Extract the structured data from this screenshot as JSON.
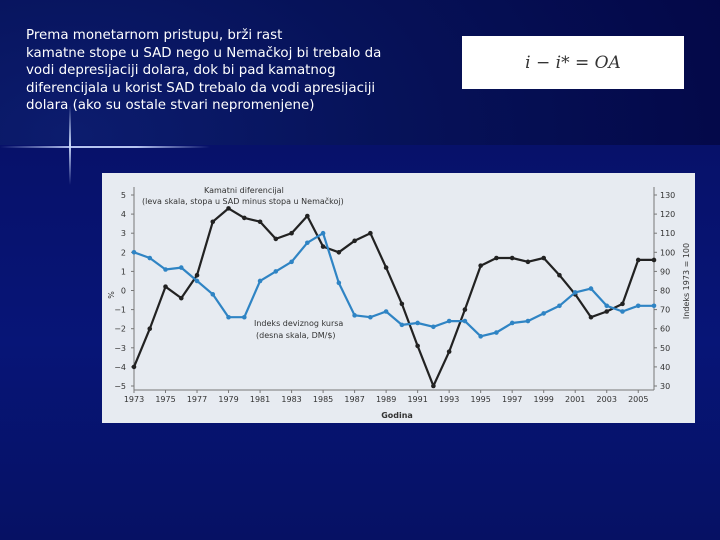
{
  "intro_text": "Prema monetarnom pristupu, brži rast\nkamatne stope u SAD nego u Nemačkoj bi trebalo da\nvodi depresijaciji dolara, dok bi pad kamatnog\ndiferencijala u korist SAD trebalo da vodi apresijaciji\ndolara (ako su ostale stvari nepromenjene)",
  "formula": "i − i* = OA",
  "colors": {
    "interest_line": "#222222",
    "index_line": "#2f84c4"
  },
  "chart_data": {
    "type": "line",
    "xlabel": "Godina",
    "ylabel_left": "%",
    "ylabel_right": "Indeks 1973 = 100",
    "xlim": [
      1973,
      2006
    ],
    "x_ticks": [
      "1973",
      "1975",
      "1977",
      "1979",
      "1981",
      "1983",
      "1985",
      "1987",
      "1989",
      "1991",
      "1993",
      "1995",
      "1997",
      "1999",
      "2001",
      "2003",
      "2005"
    ],
    "ylim_left": [
      -5,
      5
    ],
    "y_ticks_left": [
      "5",
      "4",
      "3",
      "2",
      "1",
      "0",
      "−1",
      "−2",
      "−3",
      "−4",
      "−5"
    ],
    "ylim_right": [
      30,
      130
    ],
    "y_ticks_right": [
      "130",
      "120",
      "110",
      "100",
      "90",
      "80",
      "70",
      "60",
      "50",
      "40",
      "30"
    ],
    "series": [
      {
        "name": "Kamatni diferencijal (leva skala, stopa u SAD minus stopa u Nemačkoj)",
        "label_lines": [
          "Kamatni diferencijal",
          "(leva skala, stopa u SAD minus stopa u Nemačkoj)"
        ],
        "axis": "left",
        "x": [
          1973,
          1974,
          1975,
          1976,
          1977,
          1978,
          1979,
          1980,
          1981,
          1982,
          1983,
          1984,
          1985,
          1986,
          1987,
          1988,
          1989,
          1990,
          1991,
          1992,
          1993,
          1994,
          1995,
          1996,
          1997,
          1998,
          1999,
          2000,
          2001,
          2002,
          2003,
          2004,
          2005,
          2006
        ],
        "values": [
          -4.0,
          -2.0,
          0.2,
          -0.4,
          0.8,
          3.6,
          4.3,
          3.8,
          3.6,
          2.7,
          3.0,
          3.9,
          2.3,
          2.0,
          2.6,
          3.0,
          1.2,
          -0.7,
          -2.9,
          -5.0,
          -3.2,
          -1.0,
          1.3,
          1.7,
          1.7,
          1.5,
          1.7,
          0.8,
          -0.2,
          -1.4,
          -1.1,
          -0.7,
          1.6,
          1.6
        ]
      },
      {
        "name": "Indeks deviznog kursa (desna skala, DM/$)",
        "label_lines": [
          "Indeks deviznog kursa",
          "(desna skala, DM/$)"
        ],
        "axis": "right",
        "x": [
          1973,
          1974,
          1975,
          1976,
          1977,
          1978,
          1979,
          1980,
          1981,
          1982,
          1983,
          1984,
          1985,
          1986,
          1987,
          1988,
          1989,
          1990,
          1991,
          1992,
          1993,
          1994,
          1995,
          1996,
          1997,
          1998,
          1999,
          2000,
          2001,
          2002,
          2003,
          2004,
          2005,
          2006
        ],
        "values": [
          100,
          97,
          91,
          92,
          85,
          78,
          66,
          66,
          85,
          90,
          95,
          105,
          110,
          84,
          67,
          66,
          69,
          62,
          63,
          61,
          64,
          64,
          56,
          58,
          63,
          64,
          68,
          72,
          79,
          81,
          72,
          69,
          72,
          72
        ]
      }
    ]
  }
}
